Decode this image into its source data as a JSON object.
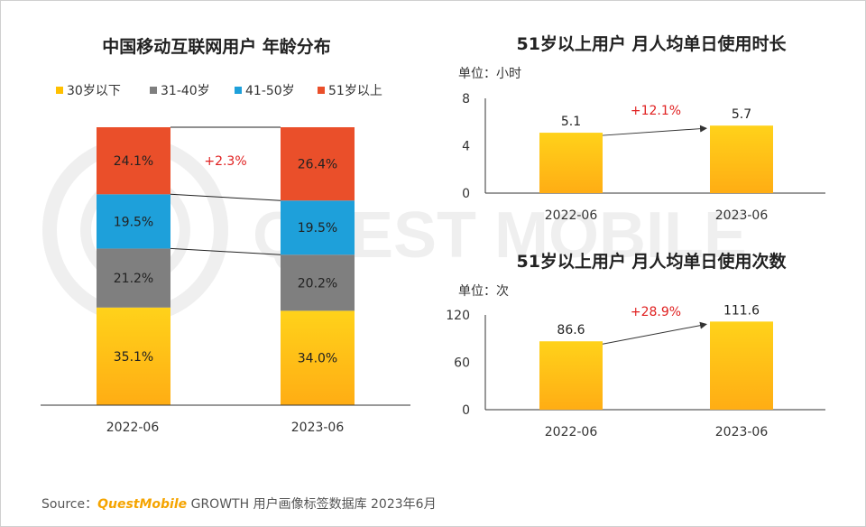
{
  "watermark": "QUEST MOBILE",
  "source": {
    "prefix": "Source：",
    "brand": "QuestMobile",
    "text": "GROWTH 用户画像标签数据库 2023年6月"
  },
  "colors": {
    "under30": "#ffc000",
    "c31_40": "#7f7f7f",
    "c41_50": "#1ea0da",
    "over51": "#ea4f2a",
    "bar_top": "#ffd21a",
    "bar_bottom": "#ffad14",
    "growth": "#e02020",
    "axis": "#333333"
  },
  "chart_data": [
    {
      "type": "bar",
      "stacked": true,
      "title": "中国移动互联网用户 年龄分布",
      "categories": [
        "2022-06",
        "2023-06"
      ],
      "legend_position": "top",
      "series": [
        {
          "name": "30岁以下",
          "values": [
            35.1,
            34.0
          ],
          "labels": [
            "35.1%",
            "34.0%"
          ]
        },
        {
          "name": "31-40岁",
          "values": [
            21.2,
            20.2
          ],
          "labels": [
            "21.2%",
            "20.2%"
          ]
        },
        {
          "name": "41-50岁",
          "values": [
            19.5,
            19.5
          ],
          "labels": [
            "19.5%",
            "19.5%"
          ]
        },
        {
          "name": "51岁以上",
          "values": [
            24.1,
            26.4
          ],
          "labels": [
            "24.1%",
            "26.4%"
          ]
        }
      ],
      "annotation": "+2.3%",
      "grid": false
    },
    {
      "type": "bar",
      "title": "51岁以上用户 月人均单日使用时长",
      "unit_label": "单位：小时",
      "categories": [
        "2022-06",
        "2023-06"
      ],
      "values": [
        5.1,
        5.7
      ],
      "value_labels": [
        "5.1",
        "5.7"
      ],
      "ylim": [
        0,
        8
      ],
      "yticks": [
        "0",
        "4",
        "8"
      ],
      "annotation": "+12.1%",
      "grid": false
    },
    {
      "type": "bar",
      "title": "51岁以上用户 月人均单日使用次数",
      "unit_label": "单位：次",
      "categories": [
        "2022-06",
        "2023-06"
      ],
      "values": [
        86.6,
        111.6
      ],
      "value_labels": [
        "86.6",
        "111.6"
      ],
      "ylim": [
        0,
        120
      ],
      "yticks": [
        "0",
        "60",
        "120"
      ],
      "annotation": "+28.9%",
      "grid": false
    }
  ]
}
